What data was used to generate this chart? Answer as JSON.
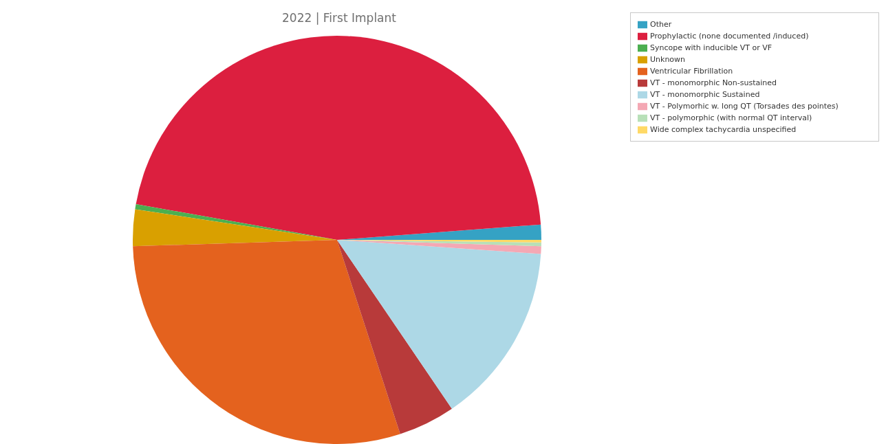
{
  "chart_data": {
    "type": "pie",
    "title": "2022 | First Implant",
    "categories": [
      "Other",
      "Prophylactic (none documented /induced)",
      "Syncope with inducible VT or VF",
      "Unknown",
      "Ventricular Fibrillation",
      "VT - monomorphic Non-sustained",
      "VT - monomorphic Sustained",
      "VT - Polymorhic w. long QT (Torsades des pointes)",
      "VT - polymorphic (with normal QT interval)",
      "Wide complex tachycardia unspecified"
    ],
    "values": [
      1.2,
      46.0,
      0.4,
      2.9,
      29.5,
      4.5,
      14.4,
      0.6,
      0.3,
      0.2
    ],
    "colors": [
      "#35a2c4",
      "#dc1f3f",
      "#4caf50",
      "#d9a000",
      "#e4621e",
      "#b83a3a",
      "#add8e6",
      "#f4a8b4",
      "#b8e0b8",
      "#ffd966"
    ],
    "legend": "top right"
  }
}
